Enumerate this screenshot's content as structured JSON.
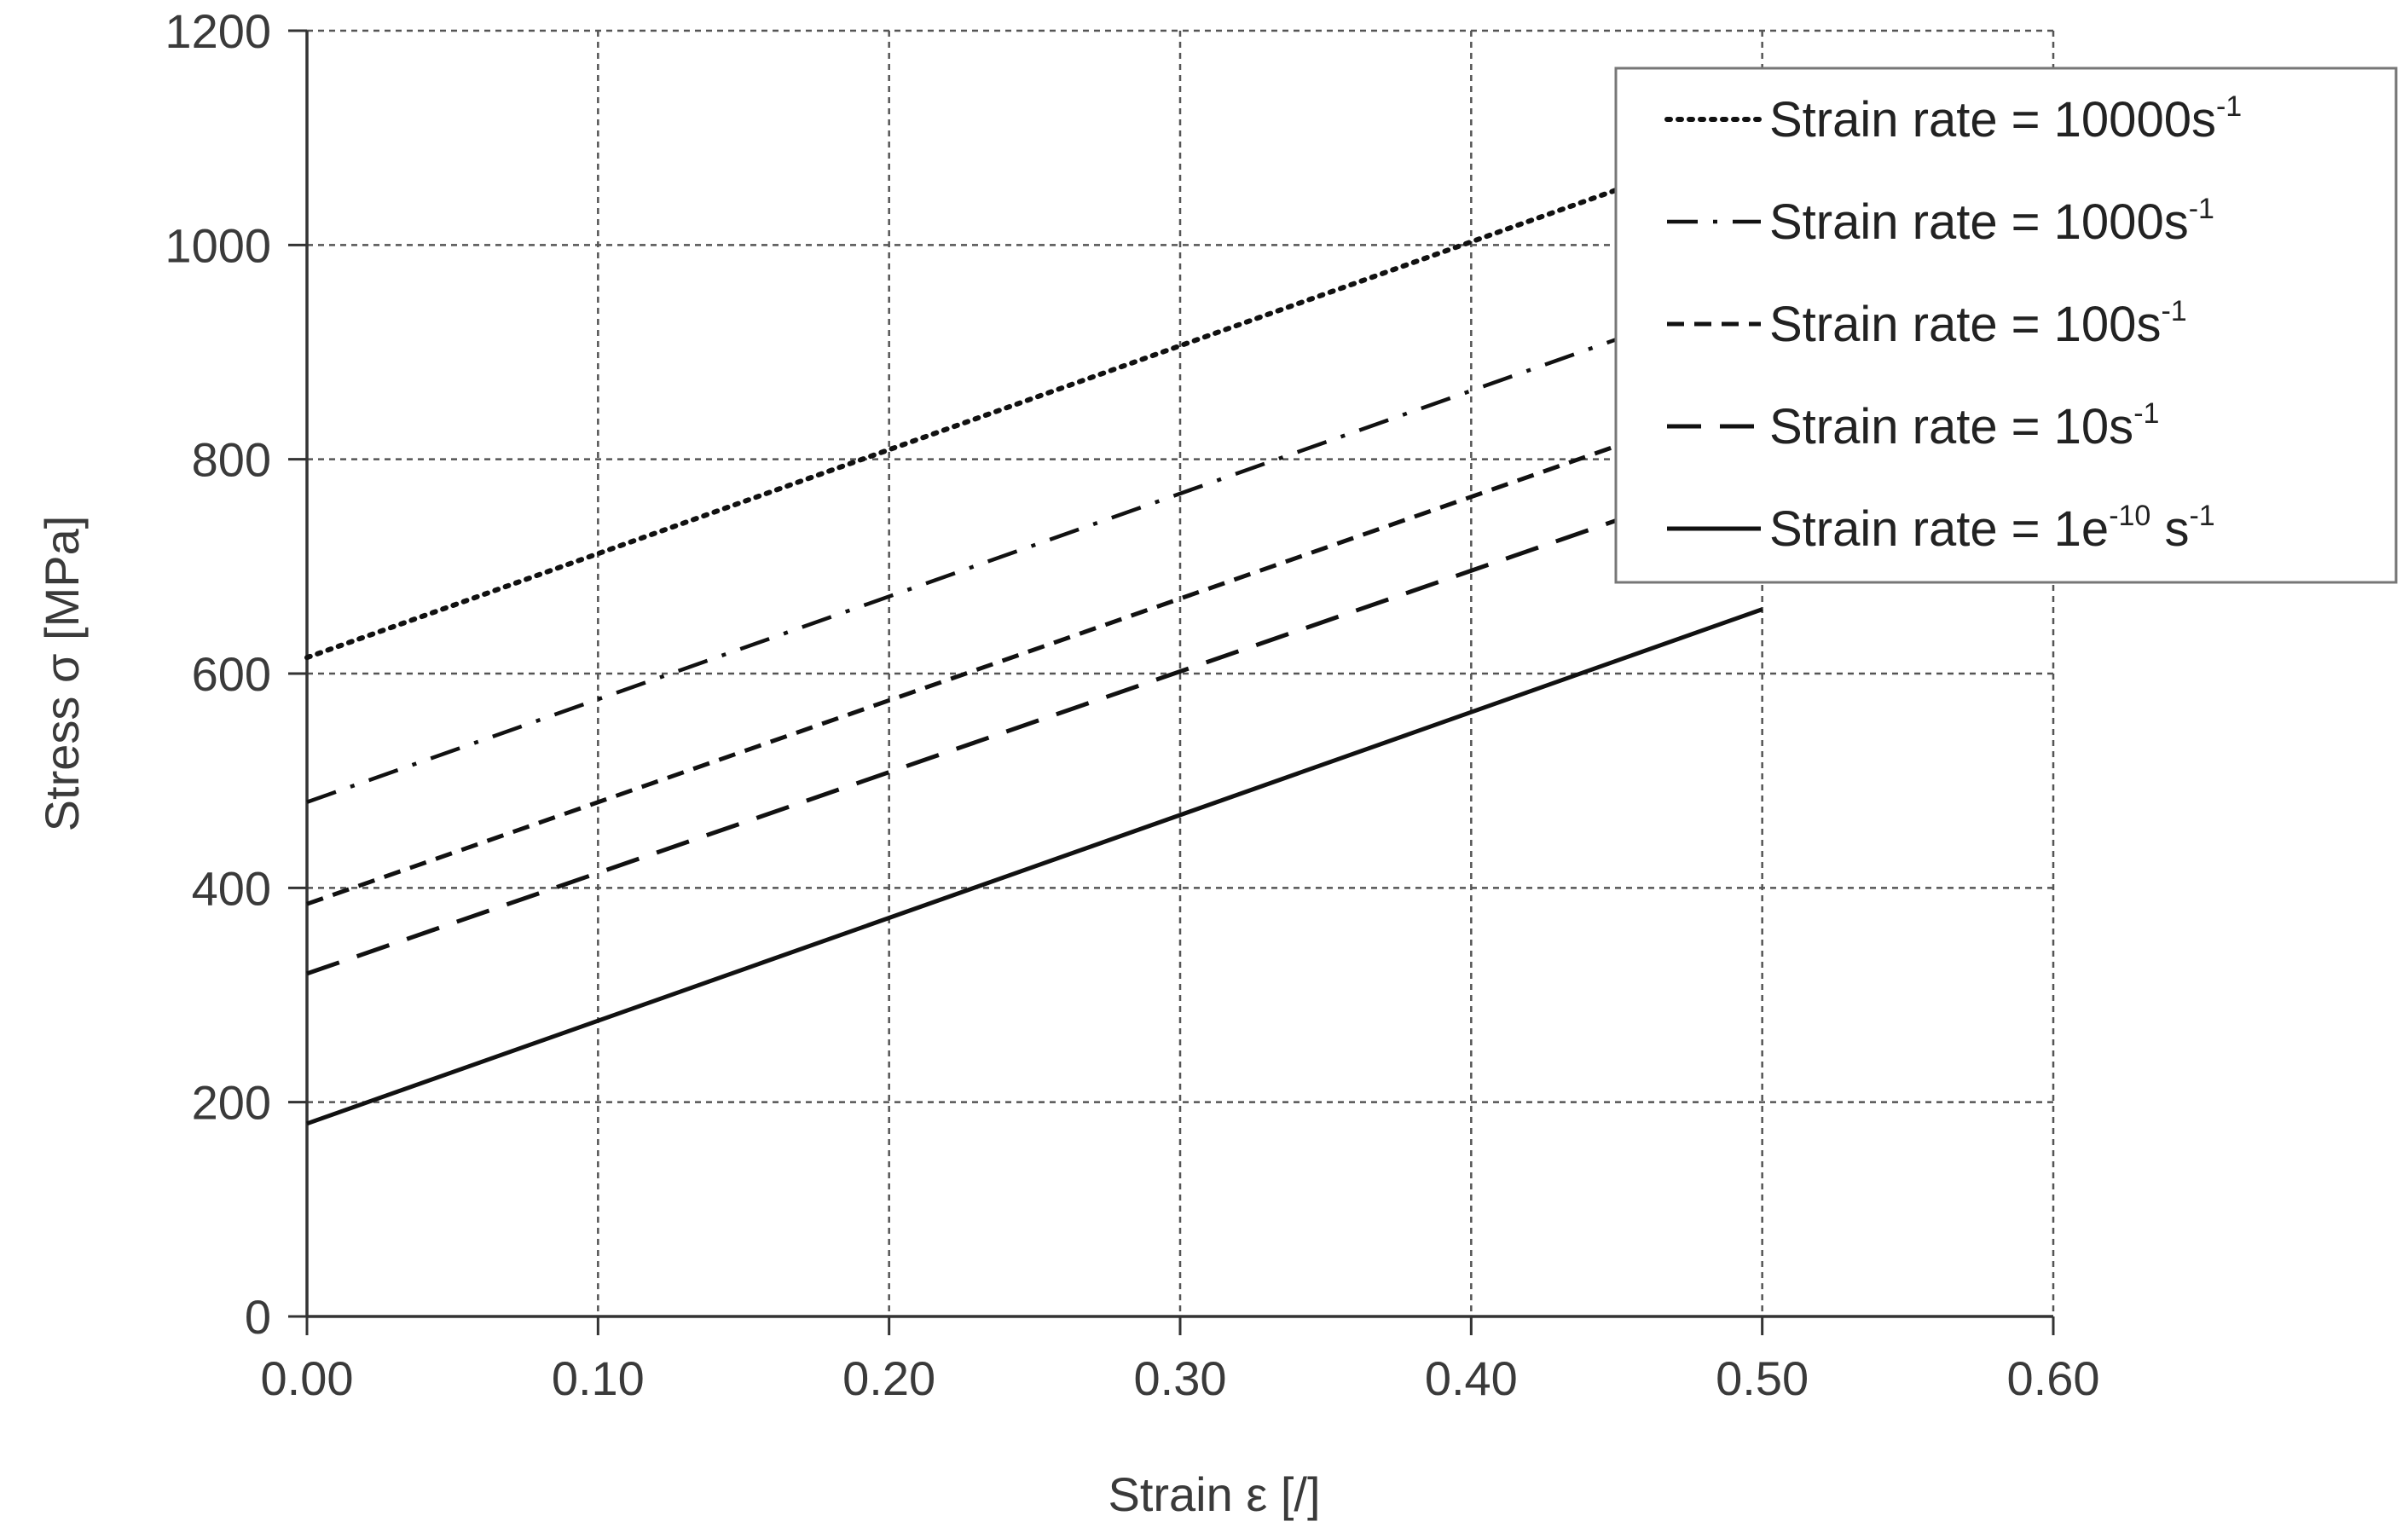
{
  "chart_data": {
    "type": "line",
    "title": "",
    "xlabel": "Strain ε [/]",
    "ylabel": "Stress σ [MPa]",
    "xlim": [
      0,
      0.6
    ],
    "ylim": [
      0,
      1200
    ],
    "x_ticks": [
      "0.00",
      "0.10",
      "0.20",
      "0.30",
      "0.40",
      "0.50",
      "0.60"
    ],
    "y_ticks": [
      "0",
      "200",
      "400",
      "600",
      "800",
      "1000",
      "1200"
    ],
    "grid": true,
    "legend_position": "top-right",
    "series": [
      {
        "name": "Strain rate = 10000s-1",
        "legend_base": "Strain rate = 10000s",
        "legend_exp": "-1",
        "style": "dotted",
        "x": [
          0,
          0.5
        ],
        "y": [
          615,
          1100
        ]
      },
      {
        "name": "Strain rate = 1000s-1",
        "legend_base": "Strain rate = 1000s",
        "legend_exp": "-1",
        "style": "dashdot",
        "x": [
          0,
          0.5
        ],
        "y": [
          480,
          960
        ]
      },
      {
        "name": "Strain rate = 100s-1",
        "legend_base": "Strain rate = 100s",
        "legend_exp": "-1",
        "style": "shortdash",
        "x": [
          0,
          0.5
        ],
        "y": [
          385,
          860
        ]
      },
      {
        "name": "Strain rate = 10s-1",
        "legend_base": "Strain rate = 10s",
        "legend_exp": "-1",
        "style": "longdash",
        "x": [
          0,
          0.5
        ],
        "y": [
          320,
          790
        ]
      },
      {
        "name": "Strain rate = 1e-10 s-1",
        "legend_base": "Strain rate = 1e",
        "legend_exp": "-10",
        "legend_tail": " s",
        "legend_exp2": "-1",
        "style": "solid",
        "x": [
          0,
          0.5
        ],
        "y": [
          180,
          660
        ]
      }
    ]
  }
}
